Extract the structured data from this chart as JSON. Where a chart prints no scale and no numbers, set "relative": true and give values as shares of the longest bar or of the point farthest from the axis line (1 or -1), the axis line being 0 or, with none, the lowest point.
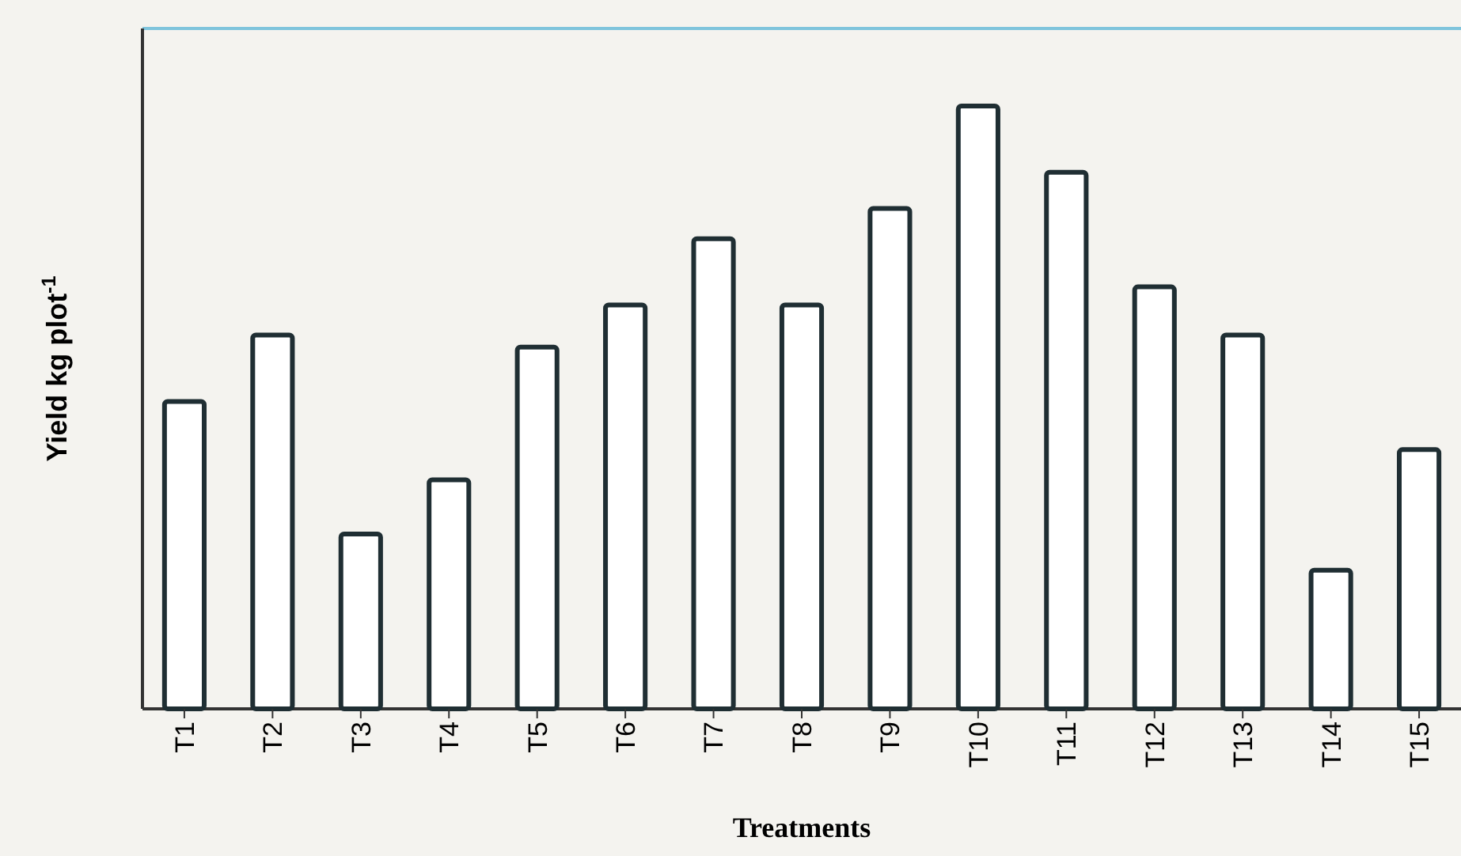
{
  "chart_data": {
    "type": "bar",
    "relative": true,
    "xlabel": "Treatments",
    "ylabel": "Yield kg plot$^{-1}$",
    "categories": [
      "T1",
      "T2",
      "T3",
      "T4",
      "T5",
      "T6",
      "T7",
      "T8",
      "T9",
      "T10",
      "T11",
      "T12",
      "T13",
      "T14",
      "T15"
    ],
    "values": [
      0.51,
      0.62,
      0.29,
      0.38,
      0.6,
      0.67,
      0.78,
      0.67,
      0.83,
      1,
      0.89,
      0.7,
      0.62,
      0.23,
      0.43
    ],
    "color": "#ffffff"
  }
}
